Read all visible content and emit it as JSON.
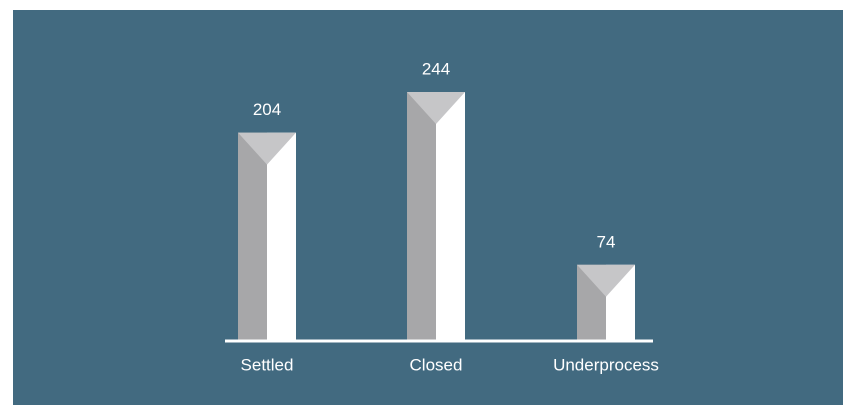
{
  "chart_data": {
    "type": "bar",
    "categories": [
      "Settled",
      "Closed",
      "Underprocess"
    ],
    "values": [
      204,
      244,
      74
    ],
    "background": "#426a80",
    "colors": {
      "shade": "#a7a7a9",
      "light": "#ffffff",
      "cap": "#c6c6c8",
      "text": "#ffffff"
    }
  }
}
